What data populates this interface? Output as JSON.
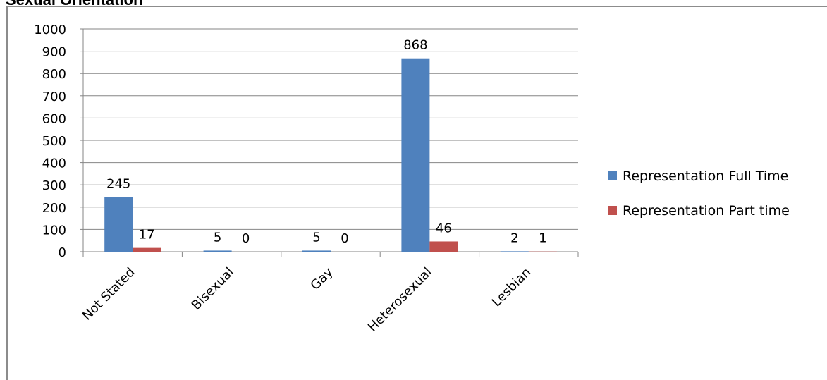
{
  "page": {
    "heading": "Sexual Orientation"
  },
  "chart_data": {
    "type": "bar",
    "title": "",
    "xlabel": "",
    "ylabel": "",
    "categories": [
      "Not Stated",
      "Bisexual",
      "Gay",
      "Heterosexual",
      "Lesbian"
    ],
    "series": [
      {
        "name": "Representation Full Time",
        "values": [
          245,
          5,
          5,
          868,
          2
        ],
        "color": "#4f81bd"
      },
      {
        "name": "Representation Part time",
        "values": [
          17,
          0,
          0,
          46,
          1
        ],
        "color": "#c0504d"
      }
    ],
    "ylim": [
      0,
      1000
    ],
    "yticks": [
      "0",
      "100",
      "200",
      "300",
      "400",
      "500",
      "600",
      "700",
      "800",
      "900",
      "1000"
    ],
    "grid": true,
    "legend_position": "right",
    "data_labels": true
  }
}
